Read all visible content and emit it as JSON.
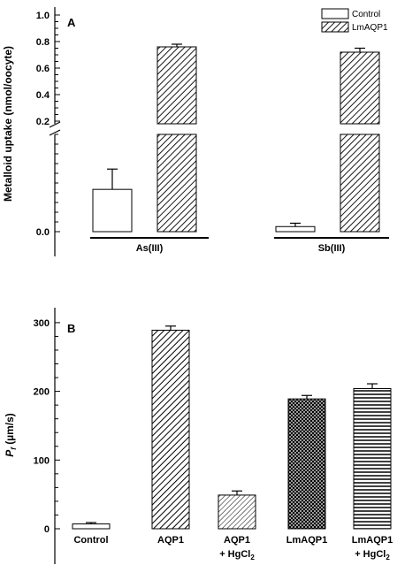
{
  "chart_data": [
    {
      "type": "bar",
      "panel_label": "A",
      "ylabel": "Metalloid uptake (nmol/oocyte)",
      "axis_break": true,
      "lower_yticks": [
        "0.0"
      ],
      "upper_yticks": [
        "0.2",
        "0.4",
        "0.6",
        "0.8",
        "1.0"
      ],
      "ylim_upper": [
        0.2,
        1.0
      ],
      "categories": [
        "As(III)",
        "Sb(III)"
      ],
      "legend": {
        "position": "top-right",
        "entries": [
          "Control",
          "LmAQP1"
        ]
      },
      "series": [
        {
          "name": "Control",
          "values": [
            0.025,
            0.003
          ],
          "errors": [
            0.012,
            0.002
          ],
          "pattern": "none"
        },
        {
          "name": "LmAQP1",
          "values": [
            0.76,
            0.72
          ],
          "errors": [
            0.02,
            0.03
          ],
          "pattern": "diagonal"
        }
      ]
    },
    {
      "type": "bar",
      "panel_label": "B",
      "ylabel_italic": "P",
      "ylabel_sub": "f",
      "ylabel_rest": " (µm/s)",
      "ylim": [
        0,
        320
      ],
      "yticks": [
        "0",
        "100",
        "200",
        "300"
      ],
      "categories": [
        {
          "line1": "Control",
          "line2": ""
        },
        {
          "line1": "AQP1",
          "line2": ""
        },
        {
          "line1": "AQP1",
          "line2": "+ HgCl",
          "line2_sub": "2"
        },
        {
          "line1": "LmAQP1",
          "line2": ""
        },
        {
          "line1": "LmAQP1",
          "line2": "+ HgCl",
          "line2_sub": "2"
        }
      ],
      "values": [
        7,
        289,
        49,
        189,
        204
      ],
      "errors": [
        2,
        6,
        6,
        5,
        7
      ],
      "patterns": [
        "none",
        "diag-coarse",
        "diag-fine",
        "crosshatch",
        "horizontal"
      ]
    }
  ]
}
